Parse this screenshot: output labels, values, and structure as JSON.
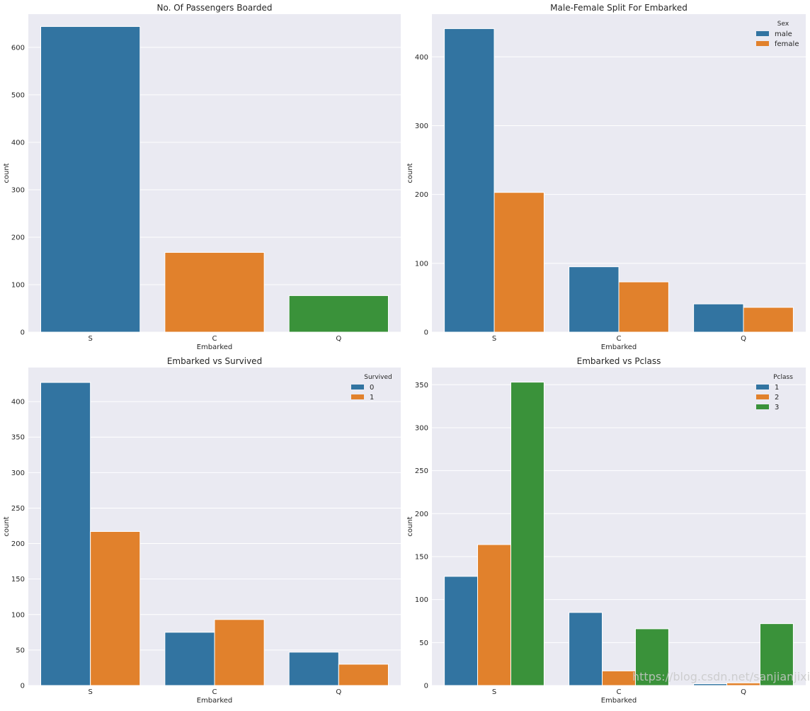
{
  "colors": {
    "blue": "#3274a1",
    "orange": "#e1812c",
    "green": "#3a923a",
    "panel_bg": "#eaeaf2",
    "grid": "#ffffff",
    "text": "#262626"
  },
  "watermark": "https://blog.csdn.net/sanjianjixiang",
  "chart_data": [
    {
      "type": "bar",
      "title": "No. Of Passengers Boarded",
      "xlabel": "Embarked",
      "ylabel": "count",
      "categories": [
        "S",
        "C",
        "Q"
      ],
      "ylim": [
        0,
        670
      ],
      "yticks": [
        0,
        100,
        200,
        300,
        400,
        500,
        600
      ],
      "ytick_labels": [
        "0",
        "100",
        "200",
        "300",
        "400",
        "500",
        "600"
      ],
      "series": [
        {
          "name": "",
          "values": [
            644,
            168,
            77
          ],
          "colors": [
            "#3274a1",
            "#e1812c",
            "#3a923a"
          ]
        }
      ],
      "legend": null
    },
    {
      "type": "bar",
      "title": "Male-Female Split For Embarked",
      "xlabel": "Embarked",
      "ylabel": "count",
      "categories": [
        "S",
        "C",
        "Q"
      ],
      "ylim": [
        0,
        462
      ],
      "yticks": [
        0,
        100,
        200,
        300,
        400
      ],
      "ytick_labels": [
        "0",
        "100",
        "200",
        "300",
        "400"
      ],
      "series": [
        {
          "name": "male",
          "values": [
            441,
            95,
            41
          ],
          "color": "#3274a1"
        },
        {
          "name": "female",
          "values": [
            203,
            73,
            36
          ],
          "color": "#e1812c"
        }
      ],
      "legend": {
        "title": "Sex",
        "location": "top-right"
      }
    },
    {
      "type": "bar",
      "title": "Embarked vs Survived",
      "xlabel": "Embarked",
      "ylabel": "count",
      "categories": [
        "S",
        "C",
        "Q"
      ],
      "ylim": [
        0,
        448
      ],
      "yticks": [
        0,
        50,
        100,
        150,
        200,
        250,
        300,
        350,
        400
      ],
      "ytick_labels": [
        "0",
        "50",
        "100",
        "150",
        "200",
        "250",
        "300",
        "350",
        "400"
      ],
      "series": [
        {
          "name": "0",
          "values": [
            427,
            75,
            47
          ],
          "color": "#3274a1"
        },
        {
          "name": "1",
          "values": [
            217,
            93,
            30
          ],
          "color": "#e1812c"
        }
      ],
      "legend": {
        "title": "Survived",
        "location": "top-right"
      }
    },
    {
      "type": "bar",
      "title": "Embarked vs Pclass",
      "xlabel": "Embarked",
      "ylabel": "count",
      "categories": [
        "S",
        "C",
        "Q"
      ],
      "ylim": [
        0,
        370
      ],
      "yticks": [
        0,
        50,
        100,
        150,
        200,
        250,
        300,
        350
      ],
      "ytick_labels": [
        "0",
        "50",
        "100",
        "150",
        "200",
        "250",
        "300",
        "350"
      ],
      "series": [
        {
          "name": "1",
          "values": [
            127,
            85,
            2
          ],
          "color": "#3274a1"
        },
        {
          "name": "2",
          "values": [
            164,
            17,
            3
          ],
          "color": "#e1812c"
        },
        {
          "name": "3",
          "values": [
            353,
            66,
            72
          ],
          "color": "#3a923a"
        }
      ],
      "legend": {
        "title": "Pclass",
        "location": "top-right"
      }
    }
  ]
}
